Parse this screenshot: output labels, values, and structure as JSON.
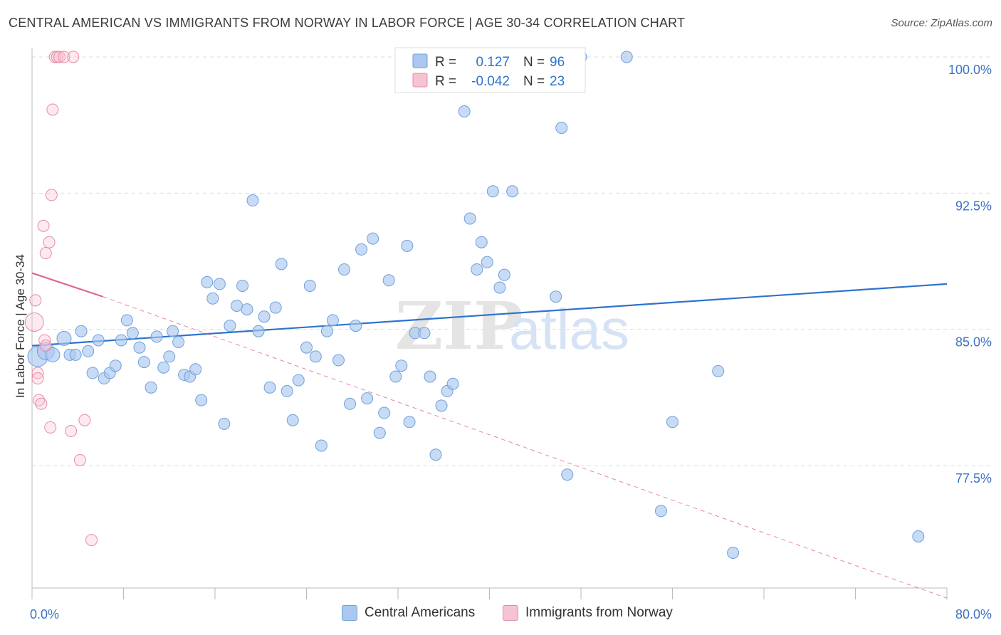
{
  "title": "CENTRAL AMERICAN VS IMMIGRANTS FROM NORWAY IN LABOR FORCE | AGE 30-34 CORRELATION CHART",
  "source": "Source: ZipAtlas.com",
  "watermark": {
    "zip": "ZIP",
    "atlas": "atlas"
  },
  "colors": {
    "blue_fill": "#aac8ef",
    "blue_stroke": "#6f9fdc",
    "blue_line": "#2e73cc",
    "pink_fill": "#f6c3d2",
    "pink_stroke": "#e88aa6",
    "pink_line": "#e0668e",
    "axis_text": "#3d72c4",
    "grid": "#dddddd"
  },
  "legend_top": {
    "rows": [
      {
        "r_label": "R =",
        "r_value": "0.127",
        "n_label": "N =",
        "n_value": "96",
        "series": "blue"
      },
      {
        "r_label": "R =",
        "r_value": "-0.042",
        "n_label": "N =",
        "n_value": "23",
        "series": "pink"
      }
    ]
  },
  "legend_bottom": [
    {
      "label": "Central Americans",
      "series": "blue"
    },
    {
      "label": "Immigrants from Norway",
      "series": "pink"
    }
  ],
  "chart_data": {
    "type": "scatter",
    "ylabel": "In Labor Force | Age 30-34",
    "xlim": [
      0,
      80
    ],
    "ylim": [
      70.5,
      101
    ],
    "x_tick_labels": [
      {
        "value": 0,
        "label": "0.0%"
      },
      {
        "value": 80,
        "label": "80.0%"
      }
    ],
    "y_tick_labels": [
      {
        "value": 100,
        "label": "100.0%"
      },
      {
        "value": 92.5,
        "label": "92.5%"
      },
      {
        "value": 85,
        "label": "85.0%"
      },
      {
        "value": 77.5,
        "label": "77.5%"
      }
    ],
    "grid": true,
    "legend_position": "top-center",
    "series": [
      {
        "name": "Central Americans",
        "color": "blue",
        "trend": {
          "x0": 0,
          "y0": 84.1,
          "x1": 80,
          "y1": 87.5
        },
        "points": [
          {
            "x": 0.5,
            "y": 83.5,
            "s": 14
          },
          {
            "x": 1.2,
            "y": 83.8,
            "s": 12
          },
          {
            "x": 1.8,
            "y": 83.6,
            "s": 10
          },
          {
            "x": 2.8,
            "y": 84.5,
            "s": 10
          },
          {
            "x": 3.3,
            "y": 83.6,
            "s": 8
          },
          {
            "x": 3.8,
            "y": 83.6,
            "s": 8
          },
          {
            "x": 4.3,
            "y": 84.9,
            "s": 8
          },
          {
            "x": 4.9,
            "y": 83.8,
            "s": 8
          },
          {
            "x": 5.3,
            "y": 82.6,
            "s": 8
          },
          {
            "x": 5.8,
            "y": 84.4,
            "s": 8
          },
          {
            "x": 6.3,
            "y": 82.3,
            "s": 8
          },
          {
            "x": 6.8,
            "y": 82.6,
            "s": 8
          },
          {
            "x": 7.3,
            "y": 83.0,
            "s": 8
          },
          {
            "x": 7.8,
            "y": 84.4,
            "s": 8
          },
          {
            "x": 8.3,
            "y": 85.5,
            "s": 8
          },
          {
            "x": 8.8,
            "y": 84.8,
            "s": 8
          },
          {
            "x": 9.4,
            "y": 84.0,
            "s": 8
          },
          {
            "x": 9.8,
            "y": 83.2,
            "s": 8
          },
          {
            "x": 10.4,
            "y": 81.8,
            "s": 8
          },
          {
            "x": 10.9,
            "y": 84.6,
            "s": 8
          },
          {
            "x": 11.5,
            "y": 82.9,
            "s": 8
          },
          {
            "x": 12.0,
            "y": 83.5,
            "s": 8
          },
          {
            "x": 12.3,
            "y": 84.9,
            "s": 8
          },
          {
            "x": 12.8,
            "y": 84.3,
            "s": 8
          },
          {
            "x": 13.3,
            "y": 82.5,
            "s": 8
          },
          {
            "x": 13.8,
            "y": 82.4,
            "s": 8
          },
          {
            "x": 14.3,
            "y": 82.8,
            "s": 8
          },
          {
            "x": 14.8,
            "y": 81.1,
            "s": 8
          },
          {
            "x": 15.3,
            "y": 87.6,
            "s": 8
          },
          {
            "x": 15.8,
            "y": 86.7,
            "s": 8
          },
          {
            "x": 16.4,
            "y": 87.5,
            "s": 8
          },
          {
            "x": 16.8,
            "y": 79.8,
            "s": 8
          },
          {
            "x": 17.3,
            "y": 85.2,
            "s": 8
          },
          {
            "x": 17.9,
            "y": 86.3,
            "s": 8
          },
          {
            "x": 18.4,
            "y": 87.4,
            "s": 8
          },
          {
            "x": 18.8,
            "y": 86.1,
            "s": 8
          },
          {
            "x": 19.3,
            "y": 92.1,
            "s": 8
          },
          {
            "x": 19.8,
            "y": 84.9,
            "s": 8
          },
          {
            "x": 20.3,
            "y": 85.7,
            "s": 8
          },
          {
            "x": 20.8,
            "y": 81.8,
            "s": 8
          },
          {
            "x": 21.3,
            "y": 86.2,
            "s": 8
          },
          {
            "x": 21.8,
            "y": 88.6,
            "s": 8
          },
          {
            "x": 22.3,
            "y": 81.6,
            "s": 8
          },
          {
            "x": 22.8,
            "y": 80.0,
            "s": 8
          },
          {
            "x": 23.3,
            "y": 82.2,
            "s": 8
          },
          {
            "x": 24.0,
            "y": 84.0,
            "s": 8
          },
          {
            "x": 24.3,
            "y": 87.4,
            "s": 8
          },
          {
            "x": 24.8,
            "y": 83.5,
            "s": 8
          },
          {
            "x": 25.3,
            "y": 78.6,
            "s": 8
          },
          {
            "x": 25.8,
            "y": 84.9,
            "s": 8
          },
          {
            "x": 26.3,
            "y": 85.5,
            "s": 8
          },
          {
            "x": 26.8,
            "y": 83.3,
            "s": 8
          },
          {
            "x": 27.3,
            "y": 88.3,
            "s": 8
          },
          {
            "x": 27.8,
            "y": 80.9,
            "s": 8
          },
          {
            "x": 28.3,
            "y": 85.2,
            "s": 8
          },
          {
            "x": 28.8,
            "y": 89.4,
            "s": 8
          },
          {
            "x": 29.3,
            "y": 81.2,
            "s": 8
          },
          {
            "x": 29.8,
            "y": 90.0,
            "s": 8
          },
          {
            "x": 30.4,
            "y": 79.3,
            "s": 8
          },
          {
            "x": 30.8,
            "y": 80.4,
            "s": 8
          },
          {
            "x": 31.2,
            "y": 87.7,
            "s": 8
          },
          {
            "x": 31.8,
            "y": 82.4,
            "s": 8
          },
          {
            "x": 32.3,
            "y": 83.0,
            "s": 8
          },
          {
            "x": 32.8,
            "y": 89.6,
            "s": 8
          },
          {
            "x": 33.0,
            "y": 79.9,
            "s": 8
          },
          {
            "x": 33.5,
            "y": 84.8,
            "s": 8
          },
          {
            "x": 34.3,
            "y": 84.8,
            "s": 8
          },
          {
            "x": 34.8,
            "y": 82.4,
            "s": 8
          },
          {
            "x": 35.3,
            "y": 78.1,
            "s": 8
          },
          {
            "x": 35.8,
            "y": 80.8,
            "s": 8
          },
          {
            "x": 36.3,
            "y": 81.6,
            "s": 8
          },
          {
            "x": 36.8,
            "y": 82.0,
            "s": 8
          },
          {
            "x": 37.0,
            "y": 100.0,
            "s": 8
          },
          {
            "x": 37.8,
            "y": 97.0,
            "s": 8
          },
          {
            "x": 38.3,
            "y": 91.1,
            "s": 8
          },
          {
            "x": 38.9,
            "y": 88.3,
            "s": 8
          },
          {
            "x": 39.3,
            "y": 89.8,
            "s": 8
          },
          {
            "x": 39.8,
            "y": 88.7,
            "s": 8
          },
          {
            "x": 40.3,
            "y": 92.6,
            "s": 8
          },
          {
            "x": 40.9,
            "y": 87.3,
            "s": 8
          },
          {
            "x": 41.3,
            "y": 88.0,
            "s": 8
          },
          {
            "x": 42.0,
            "y": 92.6,
            "s": 8
          },
          {
            "x": 43.2,
            "y": 100.0,
            "s": 8
          },
          {
            "x": 45.8,
            "y": 86.8,
            "s": 8
          },
          {
            "x": 46.3,
            "y": 96.1,
            "s": 8
          },
          {
            "x": 46.8,
            "y": 77.0,
            "s": 8
          },
          {
            "x": 48.0,
            "y": 100.0,
            "s": 8
          },
          {
            "x": 52.0,
            "y": 100.0,
            "s": 8
          },
          {
            "x": 55.0,
            "y": 75.0,
            "s": 8
          },
          {
            "x": 56.0,
            "y": 79.9,
            "s": 8
          },
          {
            "x": 60.0,
            "y": 82.7,
            "s": 8
          },
          {
            "x": 61.3,
            "y": 72.7,
            "s": 8
          },
          {
            "x": 77.5,
            "y": 73.6,
            "s": 8
          }
        ]
      },
      {
        "name": "Immigrants from Norway",
        "color": "pink",
        "trend": {
          "x0": 0,
          "y0": 88.1,
          "x1": 6.2,
          "y1": 86.8,
          "dashed_to": {
            "x": 80,
            "y": 70.2
          }
        },
        "points": [
          {
            "x": 0.2,
            "y": 85.4,
            "s": 13
          },
          {
            "x": 0.3,
            "y": 86.6,
            "s": 8
          },
          {
            "x": 0.5,
            "y": 82.6,
            "s": 8
          },
          {
            "x": 0.5,
            "y": 82.3,
            "s": 8
          },
          {
            "x": 0.6,
            "y": 81.1,
            "s": 8
          },
          {
            "x": 0.8,
            "y": 80.9,
            "s": 8
          },
          {
            "x": 1.0,
            "y": 90.7,
            "s": 8
          },
          {
            "x": 1.1,
            "y": 84.4,
            "s": 8
          },
          {
            "x": 1.2,
            "y": 84.1,
            "s": 8
          },
          {
            "x": 1.2,
            "y": 89.2,
            "s": 8
          },
          {
            "x": 1.5,
            "y": 89.8,
            "s": 8
          },
          {
            "x": 1.6,
            "y": 79.6,
            "s": 8
          },
          {
            "x": 1.7,
            "y": 92.4,
            "s": 8
          },
          {
            "x": 1.8,
            "y": 97.1,
            "s": 8
          },
          {
            "x": 2.0,
            "y": 100.0,
            "s": 8
          },
          {
            "x": 2.2,
            "y": 100.0,
            "s": 8
          },
          {
            "x": 2.4,
            "y": 100.0,
            "s": 8
          },
          {
            "x": 2.8,
            "y": 100.0,
            "s": 8
          },
          {
            "x": 3.4,
            "y": 79.4,
            "s": 8
          },
          {
            "x": 3.6,
            "y": 100.0,
            "s": 8
          },
          {
            "x": 4.2,
            "y": 77.8,
            "s": 8
          },
          {
            "x": 4.6,
            "y": 80.0,
            "s": 8
          },
          {
            "x": 5.2,
            "y": 73.4,
            "s": 8
          }
        ]
      }
    ]
  }
}
